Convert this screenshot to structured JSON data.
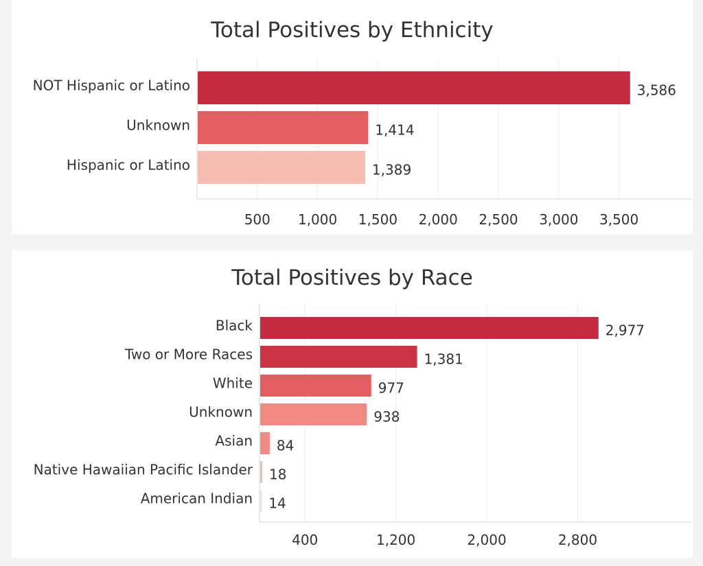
{
  "chart_data": [
    {
      "id": "ethnicity",
      "type": "bar",
      "orientation": "horizontal",
      "title": "Total Positives by Ethnicity",
      "categories": [
        "NOT Hispanic or Latino",
        "Unknown",
        "Hispanic or Latino"
      ],
      "values": [
        3586,
        1414,
        1389
      ],
      "value_labels": [
        "3,586",
        "1,414",
        "1,389"
      ],
      "colors": [
        "#c62a41",
        "#e35e60",
        "#f7bcb2"
      ],
      "x_ticks": [
        500,
        1000,
        1500,
        2000,
        2500,
        3000,
        3500
      ],
      "x_tick_labels": [
        "500",
        "1,000",
        "1,500",
        "2,000",
        "2,500",
        "3,000",
        "3,500"
      ],
      "xlim": [
        0,
        4100
      ],
      "grid": true,
      "xlabel": "",
      "ylabel": ""
    },
    {
      "id": "race",
      "type": "bar",
      "orientation": "horizontal",
      "title": "Total Positives by Race",
      "categories": [
        "Black",
        "Two or More Races",
        "White",
        "Unknown",
        "Asian",
        "Native Hawaiian Pacific Islander",
        "American Indian"
      ],
      "values": [
        2977,
        1381,
        977,
        938,
        84,
        18,
        14
      ],
      "value_labels": [
        "2,977",
        "1,381",
        "977",
        "938",
        "84",
        "18",
        "14"
      ],
      "colors": [
        "#c62a41",
        "#cd3245",
        "#e35e60",
        "#f08a82",
        "#f08a82",
        "#f7bcb2",
        "#e6e6e6"
      ],
      "x_ticks": [
        400,
        1200,
        2000,
        2800
      ],
      "x_tick_labels": [
        "400",
        "1,200",
        "2,000",
        "2,800"
      ],
      "xlim": [
        0,
        3800
      ],
      "grid": true,
      "xlabel": "",
      "ylabel": ""
    }
  ]
}
